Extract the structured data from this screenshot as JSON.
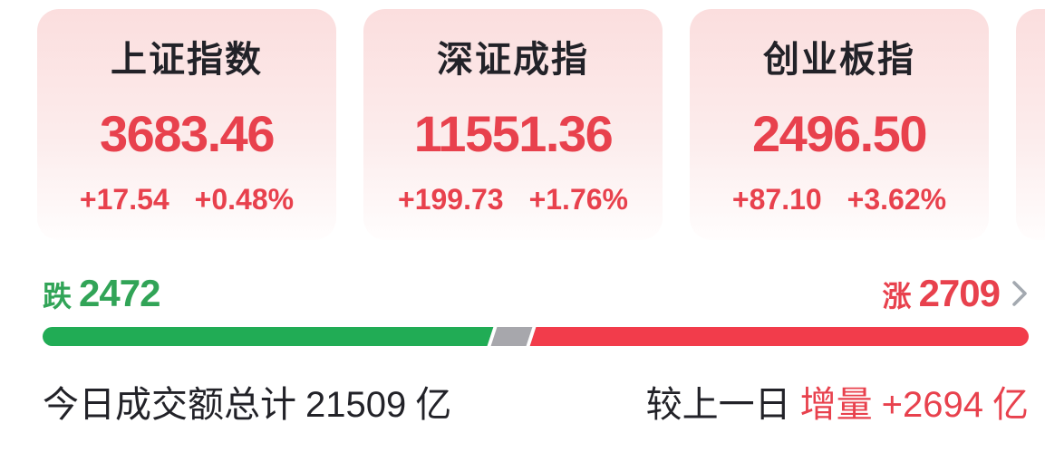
{
  "indices": [
    {
      "name": "上证指数",
      "value": "3683.46",
      "change": "+17.54",
      "change_pct": "+0.48%"
    },
    {
      "name": "深证成指",
      "value": "11551.36",
      "change": "+199.73",
      "change_pct": "+1.76%"
    },
    {
      "name": "创业板指",
      "value": "2496.50",
      "change": "+87.10",
      "change_pct": "+3.62%"
    }
  ],
  "breadth": {
    "down_label": "跌",
    "down_count": "2472",
    "up_label": "涨",
    "up_count": "2709",
    "down_bar_pct": 45.8,
    "gray_bar_pct": 4.3
  },
  "turnover": {
    "today_prefix": "今日成交额总计",
    "today_value": "21509",
    "today_unit": "亿",
    "vs_label": "较上一日",
    "vs_delta_label": "增量",
    "vs_delta_value": "+2694",
    "vs_delta_unit": "亿"
  },
  "icons": {
    "chevron_right": "›"
  },
  "colors": {
    "up_red": "#e8414d",
    "bar_red": "#f23c4b",
    "down_green": "#31a457",
    "bar_green": "#21ac55",
    "bar_gray": "#a7a7ac",
    "text_dark": "#222228",
    "chevron_gray": "#a3a9b0",
    "card_bg_top": "#fbdede",
    "card_bg_bottom": "#fffdfd"
  }
}
